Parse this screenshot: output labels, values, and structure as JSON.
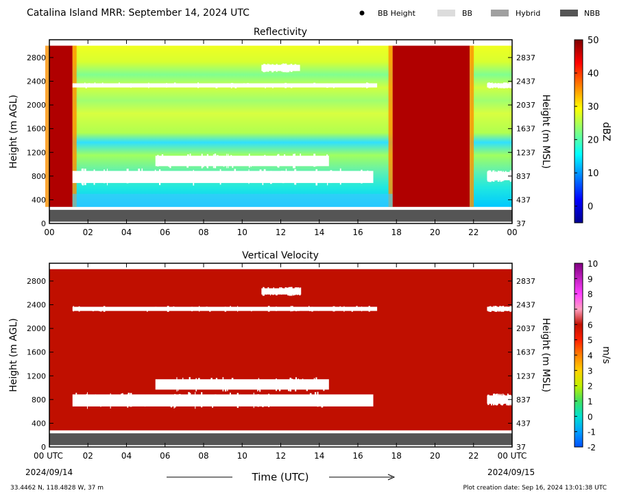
{
  "header": {
    "title": "Catalina Island MRR:  September 14, 2024 UTC",
    "legend": [
      {
        "label": "BB Height",
        "kind": "dot",
        "color": "#000000"
      },
      {
        "label": "BB",
        "kind": "box",
        "color": "#dcdcdc"
      },
      {
        "label": "Hybrid",
        "kind": "box",
        "color": "#a0a0a0"
      },
      {
        "label": "NBB",
        "kind": "box",
        "color": "#555555"
      }
    ]
  },
  "footer": {
    "location": "33.4462 N, 118.4828 W, 37 m",
    "creation": "Plot creation date: Sep 16, 2024 13:01:38 UTC",
    "xlabel": "Time (UTC)",
    "start_date": "2024/09/14",
    "end_date": "2024/09/15"
  },
  "chart_data": [
    {
      "type": "heatmap",
      "title": "Reflectivity",
      "ylabel": "Height (m AGL)",
      "y2label": "Height (m MSL)",
      "colorbar_label": "dBZ",
      "x_ticks": [
        "00",
        "02",
        "04",
        "06",
        "08",
        "10",
        "12",
        "14",
        "16",
        "18",
        "20",
        "22",
        "00"
      ],
      "xlim": [
        0,
        24
      ],
      "y_ticks": [
        0,
        400,
        800,
        1200,
        1600,
        2000,
        2400,
        2800
      ],
      "y2_ticks": [
        37,
        437,
        837,
        1237,
        1637,
        2037,
        2437,
        2837
      ],
      "ylim": [
        0,
        3100
      ],
      "clim": [
        -5,
        50
      ],
      "colorbar_ticks": [
        0,
        10,
        20,
        30,
        40,
        50
      ],
      "colors": {
        "low": "#00008f",
        "mid": "#00ffff",
        "high": "#ffff00",
        "max": "#7f0000"
      },
      "bright_band_type": "NBB",
      "missing_data_gaps": [
        {
          "t0": 1.2,
          "t1": 16.8,
          "h0": 640,
          "h1": 930
        },
        {
          "t0": 5.5,
          "t1": 14.5,
          "h0": 930,
          "h1": 1180
        },
        {
          "t0": 1.2,
          "t1": 17.0,
          "h0": 2280,
          "h1": 2380
        },
        {
          "t0": 11.0,
          "t1": 13.0,
          "h0": 2550,
          "h1": 2700
        },
        {
          "t0": 22.7,
          "t1": 24.0,
          "h0": 700,
          "h1": 900
        },
        {
          "t0": 22.7,
          "t1": 24.0,
          "h0": 2280,
          "h1": 2380
        }
      ],
      "rain_periods": [
        {
          "t0": 0.0,
          "t1": 1.2,
          "dbz": 45
        },
        {
          "t0": 17.8,
          "t1": 21.8,
          "dbz": 48
        }
      ]
    },
    {
      "type": "heatmap",
      "title": "Vertical Velocity",
      "ylabel": "Height (m AGL)",
      "y2label": "Height (m MSL)",
      "colorbar_label": "m/s",
      "x_ticks": [
        "00 UTC",
        "02",
        "04",
        "06",
        "08",
        "10",
        "12",
        "14",
        "16",
        "18",
        "20",
        "22",
        "00 UTC"
      ],
      "xlim": [
        0,
        24
      ],
      "y_ticks": [
        0,
        400,
        800,
        1200,
        1600,
        2000,
        2400,
        2800
      ],
      "y2_ticks": [
        37,
        437,
        837,
        1237,
        1637,
        2037,
        2437,
        2837
      ],
      "ylim": [
        0,
        3100
      ],
      "clim": [
        -2,
        10
      ],
      "colorbar_ticks": [
        -2,
        -1,
        0,
        1,
        2,
        3,
        4,
        5,
        6,
        7,
        8,
        9,
        10
      ],
      "dominant_value": 6,
      "colors": {
        "field": "#c00f00"
      },
      "bright_band_type": "NBB",
      "missing_data_gaps": [
        {
          "t0": 1.2,
          "t1": 16.8,
          "h0": 640,
          "h1": 930
        },
        {
          "t0": 5.5,
          "t1": 14.5,
          "h0": 930,
          "h1": 1180
        },
        {
          "t0": 1.2,
          "t1": 17.0,
          "h0": 2280,
          "h1": 2380
        },
        {
          "t0": 11.0,
          "t1": 13.0,
          "h0": 2550,
          "h1": 2700
        },
        {
          "t0": 22.7,
          "t1": 24.0,
          "h0": 700,
          "h1": 900
        },
        {
          "t0": 22.7,
          "t1": 24.0,
          "h0": 2280,
          "h1": 2380
        }
      ]
    }
  ]
}
